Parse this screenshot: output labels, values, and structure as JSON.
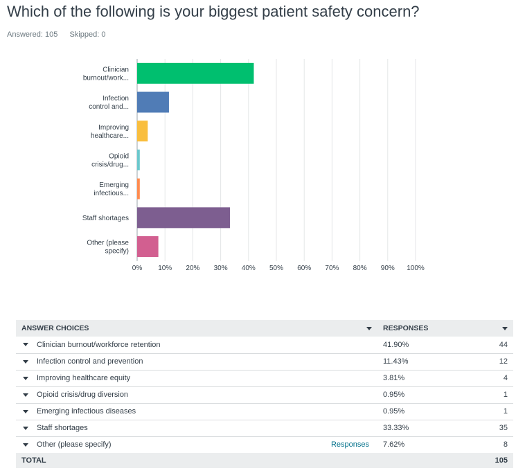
{
  "question": {
    "title": "Which of the following is your biggest patient safety concern?",
    "answered_label": "Answered: 105",
    "skipped_label": "Skipped: 0"
  },
  "chart_data": {
    "type": "bar",
    "orientation": "horizontal",
    "categories": [
      [
        "Clinician",
        "burnout/work..."
      ],
      [
        "Infection",
        "control and..."
      ],
      [
        "Improving",
        "healthcare..."
      ],
      [
        "Opioid",
        "crisis/drug..."
      ],
      [
        "Emerging",
        "infectious..."
      ],
      [
        "Staff shortages"
      ],
      [
        "Other (please",
        "specify)"
      ]
    ],
    "values": [
      41.9,
      11.43,
      3.81,
      0.95,
      0.95,
      33.33,
      7.62
    ],
    "colors": [
      "#00bf6f",
      "#507cb6",
      "#f9be3e",
      "#6bc8cd",
      "#ff8b4f",
      "#7d5e90",
      "#d25f90"
    ],
    "xlim": [
      0,
      100
    ],
    "xticks": [
      "0%",
      "10%",
      "20%",
      "30%",
      "40%",
      "50%",
      "60%",
      "70%",
      "80%",
      "90%",
      "100%"
    ],
    "grid": true
  },
  "table": {
    "headers": {
      "choices": "ANSWER CHOICES",
      "responses": "RESPONSES"
    },
    "rows": [
      {
        "choice": "Clinician burnout/workforce retention",
        "percent": "41.90%",
        "count": "44"
      },
      {
        "choice": "Infection control and prevention",
        "percent": "11.43%",
        "count": "12"
      },
      {
        "choice": "Improving healthcare equity",
        "percent": "3.81%",
        "count": "4"
      },
      {
        "choice": "Opioid crisis/drug diversion",
        "percent": "0.95%",
        "count": "1"
      },
      {
        "choice": "Emerging infectious diseases",
        "percent": "0.95%",
        "count": "1"
      },
      {
        "choice": "Staff shortages",
        "percent": "33.33%",
        "count": "35"
      },
      {
        "choice": "Other (please specify)",
        "percent": "7.62%",
        "count": "8",
        "link": "Responses"
      }
    ],
    "total": {
      "label": "TOTAL",
      "count": "105"
    }
  }
}
